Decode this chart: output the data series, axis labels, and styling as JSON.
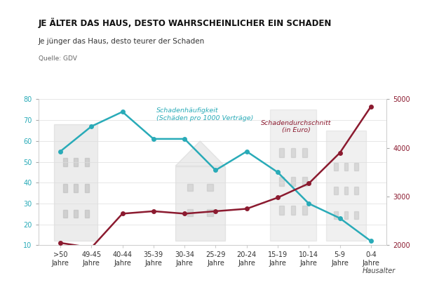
{
  "categories": [
    ">50\nJahre",
    "49-45\nJahre",
    "40-44\nJahre",
    "35-39\nJahre",
    "30-34\nJahre",
    "25-29\nJahre",
    "20-24\nJahre",
    "15-19\nJahre",
    "10-14\nJahre",
    "5-9\nJahre",
    "0-4\nJahre"
  ],
  "schaden_haeufigkeit": [
    55,
    67,
    74,
    61,
    61,
    46,
    55,
    45,
    30,
    23,
    12
  ],
  "schaden_durchschnitt": [
    2050,
    1950,
    2650,
    2700,
    2650,
    2700,
    2750,
    2980,
    3270,
    3900,
    4850
  ],
  "teal_color": "#29ABB8",
  "red_color": "#8B1A2F",
  "background_color": "#FFFFFF",
  "title": "JE ÄLTER DAS HAUS, DESTO WAHRSCHEINLICHER EIN SCHADEN",
  "subtitle": "Je jünger das Haus, desto teurer der Schaden",
  "source": "Quelle: GDV",
  "xlabel": "Hausalter",
  "ylim_left": [
    10,
    80
  ],
  "ylim_right": [
    2000,
    5000
  ],
  "yticks_left": [
    10,
    20,
    30,
    40,
    50,
    60,
    70,
    80
  ],
  "yticks_right": [
    2000,
    3000,
    4000,
    5000
  ],
  "annotation_teal": "Schadenhäufigkeit\n(Schäden pro 1000 Verträge)",
  "annotation_red": "Schadendurchschnitt\n(in Euro)",
  "title_fontsize": 8.5,
  "subtitle_fontsize": 7.5,
  "source_fontsize": 6.5,
  "tick_fontsize": 7,
  "annot_fontsize": 6.8
}
